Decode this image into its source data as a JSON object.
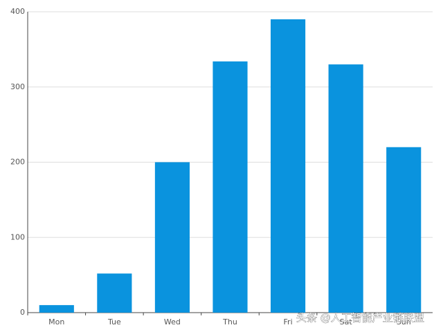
{
  "chart_data": {
    "type": "bar",
    "categories": [
      "Mon",
      "Tue",
      "Wed",
      "Thu",
      "Fri",
      "Sat",
      "Sun"
    ],
    "values": [
      10,
      52,
      200,
      334,
      390,
      330,
      220
    ],
    "color": "#0a93de",
    "ylim": [
      0,
      400
    ],
    "yticks": [
      0,
      100,
      200,
      300,
      400
    ],
    "grid": true,
    "watermark": "头条 @人工智能产业链联盟"
  }
}
